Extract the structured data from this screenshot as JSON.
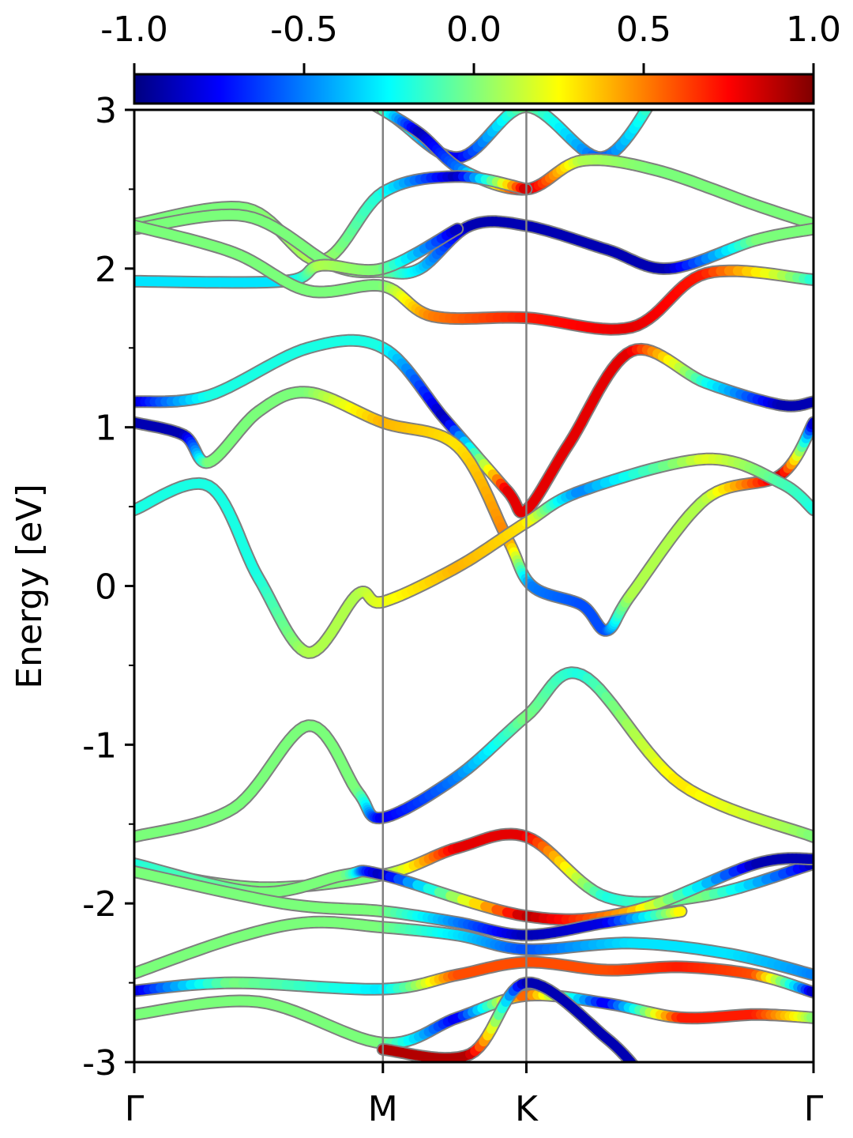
{
  "chart_data": {
    "type": "line",
    "ylabel": "Energy [eV]",
    "ylim": [
      -3,
      3
    ],
    "y_ticks": [
      "3",
      "2",
      "1",
      "0",
      "-1",
      "-2",
      "-3"
    ],
    "y_tick_values": [
      3,
      2,
      1,
      0,
      -1,
      -2,
      -3
    ],
    "k_points": [
      {
        "label": "Γ",
        "x": 0
      },
      {
        "label": "M",
        "x": 1
      },
      {
        "label": "K",
        "x": 1.577
      },
      {
        "label": "Γ",
        "x": 2.732
      }
    ],
    "x_range": [
      0,
      2.732
    ],
    "colorbar": {
      "ticks": [
        "-1.0",
        "-0.5",
        "0.0",
        "0.5",
        "1.0"
      ],
      "tick_values": [
        -1.0,
        -0.5,
        0.0,
        0.5,
        1.0
      ],
      "range": [
        -1,
        1
      ],
      "colormap": "jet"
    },
    "series": [
      {
        "points": [
          [
            0,
            3.4
          ],
          [
            0.6,
            3.3
          ],
          [
            1.0,
            3.0
          ],
          [
            1.3,
            2.7
          ],
          [
            1.577,
            3.02
          ],
          [
            1.88,
            2.7
          ],
          [
            2.1,
            3.1
          ]
        ],
        "color_values": [
          0,
          0,
          0,
          -0.8,
          0,
          -0.6,
          0
        ]
      },
      {
        "points": [
          [
            1.0,
            3.0
          ],
          [
            1.15,
            2.85
          ],
          [
            1.32,
            2.62
          ],
          [
            1.577,
            2.5
          ],
          [
            1.8,
            2.68
          ],
          [
            2.1,
            2.62
          ],
          [
            2.5,
            2.4
          ],
          [
            2.732,
            2.28
          ]
        ],
        "color_values": [
          0,
          -0.9,
          -0.5,
          0.9,
          0.1,
          0.0,
          0.0,
          0.0
        ]
      },
      {
        "points": [
          [
            0,
            2.28
          ],
          [
            0.45,
            2.38
          ],
          [
            0.75,
            2.05
          ],
          [
            1.0,
            2.48
          ],
          [
            1.3,
            2.58
          ],
          [
            1.577,
            2.5
          ]
        ],
        "color_values": [
          0,
          0,
          0.1,
          -0.2,
          -0.9,
          0.9
        ]
      },
      {
        "points": [
          [
            0,
            2.25
          ],
          [
            0.45,
            2.33
          ],
          [
            0.8,
            2.02
          ],
          [
            1.0,
            1.98
          ],
          [
            1.15,
            2.0
          ],
          [
            1.35,
            2.27
          ],
          [
            1.577,
            2.27
          ],
          [
            1.9,
            2.12
          ],
          [
            2.15,
            2.0
          ],
          [
            2.5,
            2.18
          ],
          [
            2.732,
            2.25
          ]
        ],
        "color_values": [
          0,
          0,
          0,
          0,
          -0.3,
          -0.9,
          -0.9,
          -0.9,
          -0.9,
          0,
          0
        ]
      },
      {
        "points": [
          [
            0,
            1.92
          ],
          [
            0.6,
            1.92
          ],
          [
            0.75,
            2.02
          ],
          [
            1.0,
            2.0
          ],
          [
            1.3,
            2.25
          ]
        ],
        "color_values": [
          -0.3,
          -0.3,
          0.1,
          0,
          -0.9
        ]
      },
      {
        "points": [
          [
            0,
            2.27
          ],
          [
            0.4,
            2.1
          ],
          [
            0.7,
            1.86
          ],
          [
            1.0,
            1.89
          ],
          [
            1.2,
            1.7
          ],
          [
            1.577,
            1.69
          ],
          [
            2.0,
            1.63
          ],
          [
            2.3,
            1.97
          ],
          [
            2.732,
            1.93
          ]
        ],
        "color_values": [
          0,
          0,
          0,
          0,
          0.5,
          0.7,
          0.8,
          0.7,
          -0.2
        ]
      },
      {
        "points": [
          [
            0,
            1.16
          ],
          [
            0.3,
            1.2
          ],
          [
            0.7,
            1.5
          ],
          [
            1.0,
            1.5
          ],
          [
            1.25,
            1.05
          ],
          [
            1.5,
            0.6
          ],
          [
            1.577,
            0.48
          ],
          [
            1.75,
            0.9
          ],
          [
            2.0,
            1.48
          ],
          [
            2.3,
            1.28
          ],
          [
            2.6,
            1.14
          ],
          [
            2.732,
            1.16
          ]
        ],
        "color_values": [
          -0.9,
          -0.2,
          -0.2,
          -0.2,
          -0.9,
          0.8,
          0.8,
          0.8,
          0.8,
          -0.2,
          -0.9,
          -0.9
        ]
      },
      {
        "points": [
          [
            0,
            1.03
          ],
          [
            0.2,
            0.95
          ],
          [
            0.3,
            0.78
          ],
          [
            0.5,
            1.1
          ],
          [
            0.7,
            1.22
          ],
          [
            1.0,
            1.03
          ],
          [
            1.3,
            0.88
          ],
          [
            1.5,
            0.3
          ],
          [
            1.6,
            0.0
          ],
          [
            1.8,
            -0.12
          ],
          [
            1.9,
            -0.28
          ],
          [
            2.0,
            -0.05
          ],
          [
            2.3,
            0.55
          ],
          [
            2.6,
            0.7
          ],
          [
            2.732,
            1.03
          ]
        ],
        "color_values": [
          -0.9,
          -0.9,
          0,
          0,
          0,
          0.4,
          0.3,
          0.5,
          -0.5,
          -0.6,
          -0.6,
          0.1,
          0.1,
          0.9,
          -0.9
        ]
      },
      {
        "points": [
          [
            0,
            0.48
          ],
          [
            0.3,
            0.63
          ],
          [
            0.5,
            0.05
          ],
          [
            0.7,
            -0.42
          ],
          [
            0.9,
            -0.05
          ],
          [
            1.0,
            -0.1
          ],
          [
            1.3,
            0.12
          ],
          [
            1.577,
            0.4
          ],
          [
            1.8,
            0.6
          ],
          [
            2.3,
            0.8
          ],
          [
            2.6,
            0.65
          ],
          [
            2.732,
            0.48
          ]
        ],
        "color_values": [
          -0.2,
          -0.2,
          -0.2,
          0.1,
          0.1,
          0.2,
          0.4,
          0.3,
          -0.5,
          0.2,
          -0.1,
          -0.2
        ]
      },
      {
        "points": [
          [
            0,
            -1.58
          ],
          [
            0.4,
            -1.4
          ],
          [
            0.7,
            -0.88
          ],
          [
            0.9,
            -1.3
          ],
          [
            1.0,
            -1.46
          ],
          [
            1.3,
            -1.2
          ],
          [
            1.577,
            -0.82
          ],
          [
            1.8,
            -0.56
          ],
          [
            2.2,
            -1.25
          ],
          [
            2.732,
            -1.58
          ]
        ],
        "color_values": [
          0,
          0,
          0,
          0,
          -0.8,
          -0.5,
          0,
          -0.2,
          0.3,
          0
        ]
      },
      {
        "points": [
          [
            0,
            -1.78
          ],
          [
            0.5,
            -1.9
          ],
          [
            1.0,
            -1.82
          ],
          [
            1.3,
            -1.65
          ],
          [
            1.577,
            -1.58
          ],
          [
            1.9,
            -1.96
          ],
          [
            2.3,
            -1.95
          ],
          [
            2.732,
            -1.75
          ]
        ],
        "color_values": [
          0,
          0,
          0,
          0.8,
          0.8,
          -0.2,
          0,
          -0.9
        ]
      },
      {
        "points": [
          [
            0,
            -1.75
          ],
          [
            0.5,
            -1.93
          ],
          [
            0.85,
            -1.82
          ],
          [
            1.0,
            -1.82
          ],
          [
            1.577,
            -2.08
          ],
          [
            2.0,
            -2.05
          ],
          [
            2.5,
            -1.75
          ],
          [
            2.732,
            -1.72
          ]
        ],
        "color_values": [
          -0.2,
          0,
          0,
          -0.9,
          0.9,
          0.4,
          -0.9,
          -0.9
        ]
      },
      {
        "points": [
          [
            0,
            -1.8
          ],
          [
            0.6,
            -2.0
          ],
          [
            1.0,
            -2.05
          ],
          [
            1.3,
            -2.12
          ],
          [
            1.577,
            -2.2
          ],
          [
            1.9,
            -2.12
          ],
          [
            2.2,
            -2.05
          ]
        ],
        "color_values": [
          0,
          0,
          0,
          -0.5,
          -0.9,
          -0.8,
          0.3
        ]
      },
      {
        "points": [
          [
            0,
            -2.44
          ],
          [
            0.4,
            -2.22
          ],
          [
            0.7,
            -2.12
          ],
          [
            1.0,
            -2.15
          ],
          [
            1.3,
            -2.2
          ],
          [
            1.577,
            -2.29
          ],
          [
            2.0,
            -2.25
          ],
          [
            2.4,
            -2.32
          ],
          [
            2.732,
            -2.45
          ]
        ],
        "color_values": [
          0,
          0,
          0,
          0,
          -0.3,
          -0.6,
          -0.3,
          -0.3,
          -0.5
        ]
      },
      {
        "points": [
          [
            0,
            -2.55
          ],
          [
            0.4,
            -2.5
          ],
          [
            1.0,
            -2.54
          ],
          [
            1.3,
            -2.45
          ],
          [
            1.577,
            -2.37
          ],
          [
            1.9,
            -2.42
          ],
          [
            2.2,
            -2.4
          ],
          [
            2.5,
            -2.45
          ],
          [
            2.732,
            -2.56
          ]
        ],
        "color_values": [
          -0.9,
          0,
          -0.3,
          0.6,
          0.6,
          0.6,
          0.7,
          0.6,
          -0.9
        ]
      },
      {
        "points": [
          [
            0,
            -2.7
          ],
          [
            0.5,
            -2.62
          ],
          [
            1.0,
            -2.88
          ],
          [
            1.3,
            -2.72
          ],
          [
            1.577,
            -2.58
          ],
          [
            1.9,
            -2.63
          ],
          [
            2.2,
            -2.72
          ],
          [
            2.5,
            -2.7
          ],
          [
            2.732,
            -2.72
          ]
        ],
        "color_values": [
          0,
          0,
          0,
          -0.8,
          0.6,
          -0.8,
          0.7,
          0.7,
          0
        ]
      },
      {
        "points": [
          [
            1.0,
            -2.92
          ],
          [
            1.35,
            -2.95
          ],
          [
            1.577,
            -2.5
          ],
          [
            1.9,
            -2.85
          ],
          [
            2.05,
            -3.1
          ]
        ],
        "color_values": [
          0.9,
          0.9,
          -0.9,
          -0.9,
          -0.9
        ]
      }
    ]
  }
}
